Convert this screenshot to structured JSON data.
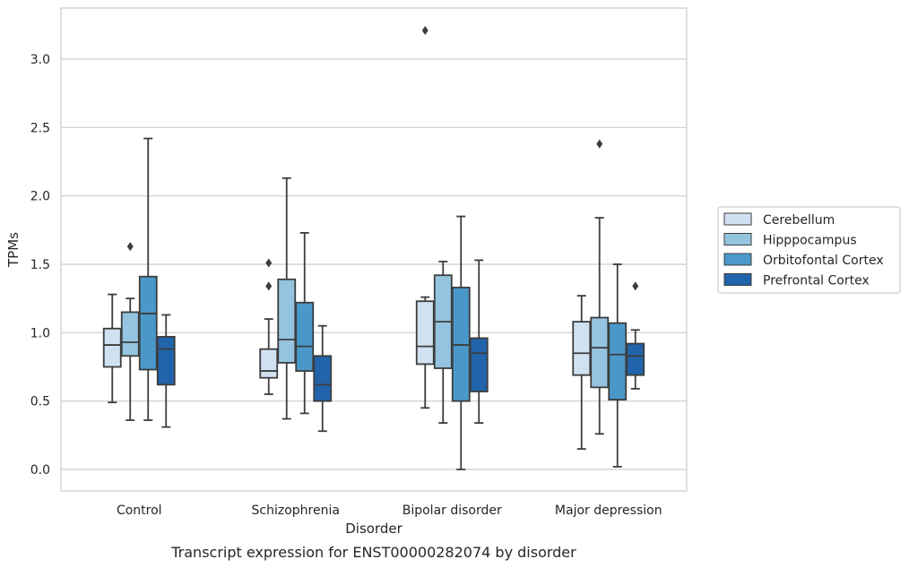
{
  "chart_data": {
    "type": "boxplot",
    "title": "",
    "caption": "Transcript expression for ENST00000282074 by disorder",
    "xlabel": "Disorder",
    "ylabel": "TPMs",
    "ylim": [
      -0.15,
      3.38
    ],
    "yticks": [
      0.0,
      0.5,
      1.0,
      1.5,
      2.0,
      2.5,
      3.0
    ],
    "ytick_labels": [
      "0.0",
      "0.5",
      "1.0",
      "1.5",
      "2.0",
      "2.5",
      "3.0"
    ],
    "grid": "horizontal",
    "legend_position": "right",
    "categories": [
      "Control",
      "Schizophrenia",
      "Bipolar disorder",
      "Major depression"
    ],
    "series": [
      {
        "name": "Cerebellum",
        "color": "#d0e1f2",
        "boxes": [
          {
            "whislo": 0.49,
            "q1": 0.75,
            "med": 0.91,
            "q3": 1.03,
            "whishi": 1.28,
            "fliers": []
          },
          {
            "whislo": 0.55,
            "q1": 0.67,
            "med": 0.72,
            "q3": 0.88,
            "whishi": 1.1,
            "fliers": [
              1.34,
              1.51
            ]
          },
          {
            "whislo": 0.45,
            "q1": 0.77,
            "med": 0.9,
            "q3": 1.23,
            "whishi": 1.26,
            "fliers": [
              3.21
            ]
          },
          {
            "whislo": 0.15,
            "q1": 0.69,
            "med": 0.85,
            "q3": 1.08,
            "whishi": 1.27,
            "fliers": []
          }
        ]
      },
      {
        "name": "Hipppocampus",
        "color": "#94c4df",
        "boxes": [
          {
            "whislo": 0.36,
            "q1": 0.83,
            "med": 0.93,
            "q3": 1.15,
            "whishi": 1.25,
            "fliers": [
              1.63
            ]
          },
          {
            "whislo": 0.37,
            "q1": 0.78,
            "med": 0.95,
            "q3": 1.39,
            "whishi": 2.13,
            "fliers": []
          },
          {
            "whislo": 0.34,
            "q1": 0.74,
            "med": 1.08,
            "q3": 1.42,
            "whishi": 1.52,
            "fliers": []
          },
          {
            "whislo": 0.26,
            "q1": 0.6,
            "med": 0.89,
            "q3": 1.11,
            "whishi": 1.84,
            "fliers": [
              2.38
            ]
          }
        ]
      },
      {
        "name": "Orbitofontal Cortex",
        "color": "#4a98c9",
        "boxes": [
          {
            "whislo": 0.36,
            "q1": 0.73,
            "med": 1.14,
            "q3": 1.41,
            "whishi": 2.42,
            "fliers": []
          },
          {
            "whislo": 0.41,
            "q1": 0.72,
            "med": 0.9,
            "q3": 1.22,
            "whishi": 1.73,
            "fliers": []
          },
          {
            "whislo": 0.0,
            "q1": 0.5,
            "med": 0.91,
            "q3": 1.33,
            "whishi": 1.85,
            "fliers": []
          },
          {
            "whislo": 0.02,
            "q1": 0.51,
            "med": 0.84,
            "q3": 1.07,
            "whishi": 1.5,
            "fliers": []
          }
        ]
      },
      {
        "name": "Prefrontal Cortex",
        "color": "#2164ab",
        "boxes": [
          {
            "whislo": 0.31,
            "q1": 0.62,
            "med": 0.88,
            "q3": 0.97,
            "whishi": 1.13,
            "fliers": []
          },
          {
            "whislo": 0.28,
            "q1": 0.5,
            "med": 0.62,
            "q3": 0.83,
            "whishi": 1.05,
            "fliers": []
          },
          {
            "whislo": 0.34,
            "q1": 0.57,
            "med": 0.85,
            "q3": 0.96,
            "whishi": 1.53,
            "fliers": []
          },
          {
            "whislo": 0.59,
            "q1": 0.69,
            "med": 0.83,
            "q3": 0.92,
            "whishi": 1.02,
            "fliers": [
              1.34
            ]
          }
        ]
      }
    ]
  }
}
